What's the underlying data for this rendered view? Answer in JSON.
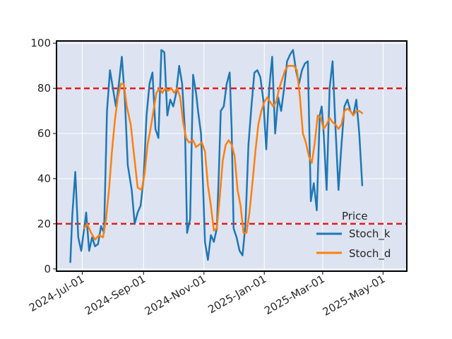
{
  "chart_data": {
    "type": "line",
    "title": "",
    "xlabel": "",
    "ylabel": "",
    "x_range": [
      "2024-06-05",
      "2025-05-25"
    ],
    "ylim": [
      -1,
      101
    ],
    "x_ticks": [
      {
        "date": "2024-07-01",
        "label": "2024-Jul-01"
      },
      {
        "date": "2024-09-01",
        "label": "2024-Sep-01"
      },
      {
        "date": "2024-11-01",
        "label": "2024-Nov-01"
      },
      {
        "date": "2025-01-01",
        "label": "2025-Jan-01"
      },
      {
        "date": "2025-03-01",
        "label": "2025-Mar-01"
      },
      {
        "date": "2025-05-01",
        "label": "2025-May-01"
      }
    ],
    "y_ticks": [
      0,
      20,
      40,
      60,
      80,
      100
    ],
    "grid": true,
    "background": "#dde3f0",
    "reference_lines": [
      {
        "y": 80,
        "color": "#e41a1c",
        "style": "dashed"
      },
      {
        "y": 20,
        "color": "#e41a1c",
        "style": "dashed"
      }
    ],
    "legend": {
      "title": "Price",
      "position": "lower-right"
    },
    "series": [
      {
        "name": "Stoch_k",
        "color": "#1f77b4",
        "points": [
          [
            "2024-06-19",
            3
          ],
          [
            "2024-06-21",
            24
          ],
          [
            "2024-06-24",
            43
          ],
          [
            "2024-06-27",
            14
          ],
          [
            "2024-06-30",
            8
          ],
          [
            "2024-07-03",
            18
          ],
          [
            "2024-07-05",
            25
          ],
          [
            "2024-07-08",
            8
          ],
          [
            "2024-07-11",
            14
          ],
          [
            "2024-07-14",
            10
          ],
          [
            "2024-07-17",
            11
          ],
          [
            "2024-07-20",
            19
          ],
          [
            "2024-07-23",
            16
          ],
          [
            "2024-07-26",
            70
          ],
          [
            "2024-07-29",
            88
          ],
          [
            "2024-08-01",
            80
          ],
          [
            "2024-08-04",
            72
          ],
          [
            "2024-08-07",
            82
          ],
          [
            "2024-08-10",
            94
          ],
          [
            "2024-08-13",
            76
          ],
          [
            "2024-08-16",
            46
          ],
          [
            "2024-08-20",
            35
          ],
          [
            "2024-08-23",
            20
          ],
          [
            "2024-08-26",
            25
          ],
          [
            "2024-08-29",
            28
          ],
          [
            "2024-09-01",
            40
          ],
          [
            "2024-09-04",
            68
          ],
          [
            "2024-09-07",
            82
          ],
          [
            "2024-09-10",
            87
          ],
          [
            "2024-09-13",
            62
          ],
          [
            "2024-09-16",
            58
          ],
          [
            "2024-09-19",
            97
          ],
          [
            "2024-09-22",
            96
          ],
          [
            "2024-09-25",
            68
          ],
          [
            "2024-09-28",
            75
          ],
          [
            "2024-10-01",
            72
          ],
          [
            "2024-10-04",
            78
          ],
          [
            "2024-10-07",
            90
          ],
          [
            "2024-10-10",
            82
          ],
          [
            "2024-10-13",
            60
          ],
          [
            "2024-10-15",
            16
          ],
          [
            "2024-10-18",
            22
          ],
          [
            "2024-10-21",
            86
          ],
          [
            "2024-10-24",
            78
          ],
          [
            "2024-10-26",
            70
          ],
          [
            "2024-10-29",
            60
          ],
          [
            "2024-10-31",
            38
          ],
          [
            "2024-11-02",
            12
          ],
          [
            "2024-11-05",
            4
          ],
          [
            "2024-11-08",
            15
          ],
          [
            "2024-11-11",
            12
          ],
          [
            "2024-11-14",
            18
          ],
          [
            "2024-11-16",
            42
          ],
          [
            "2024-11-18",
            70
          ],
          [
            "2024-11-21",
            72
          ],
          [
            "2024-11-24",
            82
          ],
          [
            "2024-11-27",
            87
          ],
          [
            "2024-11-29",
            62
          ],
          [
            "2024-12-01",
            18
          ],
          [
            "2024-12-04",
            14
          ],
          [
            "2024-12-07",
            8
          ],
          [
            "2024-12-10",
            6
          ],
          [
            "2024-12-13",
            20
          ],
          [
            "2024-12-16",
            55
          ],
          [
            "2024-12-19",
            72
          ],
          [
            "2024-12-22",
            87
          ],
          [
            "2024-12-25",
            88
          ],
          [
            "2024-12-28",
            85
          ],
          [
            "2024-12-31",
            75
          ],
          [
            "2025-01-03",
            53
          ],
          [
            "2025-01-06",
            80
          ],
          [
            "2025-01-09",
            94
          ],
          [
            "2025-01-12",
            60
          ],
          [
            "2025-01-15",
            76
          ],
          [
            "2025-01-18",
            70
          ],
          [
            "2025-01-21",
            80
          ],
          [
            "2025-01-24",
            92
          ],
          [
            "2025-01-27",
            95
          ],
          [
            "2025-01-30",
            97
          ],
          [
            "2025-02-02",
            88
          ],
          [
            "2025-02-05",
            82
          ],
          [
            "2025-02-08",
            88
          ],
          [
            "2025-02-11",
            91
          ],
          [
            "2025-02-14",
            92
          ],
          [
            "2025-02-17",
            30
          ],
          [
            "2025-02-20",
            38
          ],
          [
            "2025-02-23",
            26
          ],
          [
            "2025-02-26",
            68
          ],
          [
            "2025-02-28",
            72
          ],
          [
            "2025-03-02",
            60
          ],
          [
            "2025-03-05",
            35
          ],
          [
            "2025-03-08",
            80
          ],
          [
            "2025-03-11",
            92
          ],
          [
            "2025-03-14",
            62
          ],
          [
            "2025-03-17",
            35
          ],
          [
            "2025-03-20",
            55
          ],
          [
            "2025-03-23",
            72
          ],
          [
            "2025-03-26",
            75
          ],
          [
            "2025-03-29",
            70
          ],
          [
            "2025-04-01",
            68
          ],
          [
            "2025-04-04",
            75
          ],
          [
            "2025-04-07",
            60
          ],
          [
            "2025-04-10",
            37
          ]
        ]
      },
      {
        "name": "Stoch_d",
        "color": "#ff7f0e",
        "points": [
          [
            "2024-07-03",
            18
          ],
          [
            "2024-07-06",
            20
          ],
          [
            "2024-07-10",
            16
          ],
          [
            "2024-07-14",
            13
          ],
          [
            "2024-07-18",
            15
          ],
          [
            "2024-07-22",
            14
          ],
          [
            "2024-07-25",
            22
          ],
          [
            "2024-07-28",
            35
          ],
          [
            "2024-07-31",
            52
          ],
          [
            "2024-08-03",
            66
          ],
          [
            "2024-08-06",
            76
          ],
          [
            "2024-08-09",
            82
          ],
          [
            "2024-08-12",
            82
          ],
          [
            "2024-08-15",
            72
          ],
          [
            "2024-08-19",
            64
          ],
          [
            "2024-08-22",
            52
          ],
          [
            "2024-08-26",
            36
          ],
          [
            "2024-08-30",
            35
          ],
          [
            "2024-09-02",
            42
          ],
          [
            "2024-09-05",
            55
          ],
          [
            "2024-09-08",
            62
          ],
          [
            "2024-09-11",
            70
          ],
          [
            "2024-09-14",
            78
          ],
          [
            "2024-09-17",
            80
          ],
          [
            "2024-09-20",
            78
          ],
          [
            "2024-09-23",
            80
          ],
          [
            "2024-09-26",
            79
          ],
          [
            "2024-09-29",
            80
          ],
          [
            "2024-10-02",
            78
          ],
          [
            "2024-10-05",
            80
          ],
          [
            "2024-10-08",
            76
          ],
          [
            "2024-10-11",
            65
          ],
          [
            "2024-10-14",
            58
          ],
          [
            "2024-10-17",
            56
          ],
          [
            "2024-10-21",
            57
          ],
          [
            "2024-10-24",
            54
          ],
          [
            "2024-10-27",
            55
          ],
          [
            "2024-10-30",
            56
          ],
          [
            "2024-11-02",
            52
          ],
          [
            "2024-11-05",
            37
          ],
          [
            "2024-11-08",
            28
          ],
          [
            "2024-11-11",
            17
          ],
          [
            "2024-11-14",
            18
          ],
          [
            "2024-11-17",
            32
          ],
          [
            "2024-11-20",
            48
          ],
          [
            "2024-11-23",
            55
          ],
          [
            "2024-11-26",
            57
          ],
          [
            "2024-11-29",
            55
          ],
          [
            "2024-12-02",
            50
          ],
          [
            "2024-12-05",
            35
          ],
          [
            "2024-12-08",
            28
          ],
          [
            "2024-12-11",
            16
          ],
          [
            "2024-12-14",
            16
          ],
          [
            "2024-12-17",
            25
          ],
          [
            "2024-12-20",
            38
          ],
          [
            "2024-12-23",
            52
          ],
          [
            "2024-12-26",
            64
          ],
          [
            "2024-12-29",
            70
          ],
          [
            "2025-01-01",
            74
          ],
          [
            "2025-01-04",
            76
          ],
          [
            "2025-01-07",
            74
          ],
          [
            "2025-01-10",
            72
          ],
          [
            "2025-01-13",
            74
          ],
          [
            "2025-01-16",
            80
          ],
          [
            "2025-01-19",
            84
          ],
          [
            "2025-01-22",
            88
          ],
          [
            "2025-01-25",
            90
          ],
          [
            "2025-01-28",
            90
          ],
          [
            "2025-01-31",
            90
          ],
          [
            "2025-02-03",
            88
          ],
          [
            "2025-02-06",
            76
          ],
          [
            "2025-02-09",
            60
          ],
          [
            "2025-02-12",
            56
          ],
          [
            "2025-02-15",
            50
          ],
          [
            "2025-02-18",
            47
          ],
          [
            "2025-02-21",
            56
          ],
          [
            "2025-02-24",
            68
          ],
          [
            "2025-02-27",
            67
          ],
          [
            "2025-03-02",
            62
          ],
          [
            "2025-03-05",
            64
          ],
          [
            "2025-03-08",
            67
          ],
          [
            "2025-03-11",
            65
          ],
          [
            "2025-03-14",
            64
          ],
          [
            "2025-03-17",
            62
          ],
          [
            "2025-03-20",
            64
          ],
          [
            "2025-03-23",
            70
          ],
          [
            "2025-03-26",
            71
          ],
          [
            "2025-03-29",
            70
          ],
          [
            "2025-04-01",
            68
          ],
          [
            "2025-04-04",
            70
          ],
          [
            "2025-04-07",
            70
          ],
          [
            "2025-04-10",
            69
          ]
        ]
      }
    ]
  }
}
